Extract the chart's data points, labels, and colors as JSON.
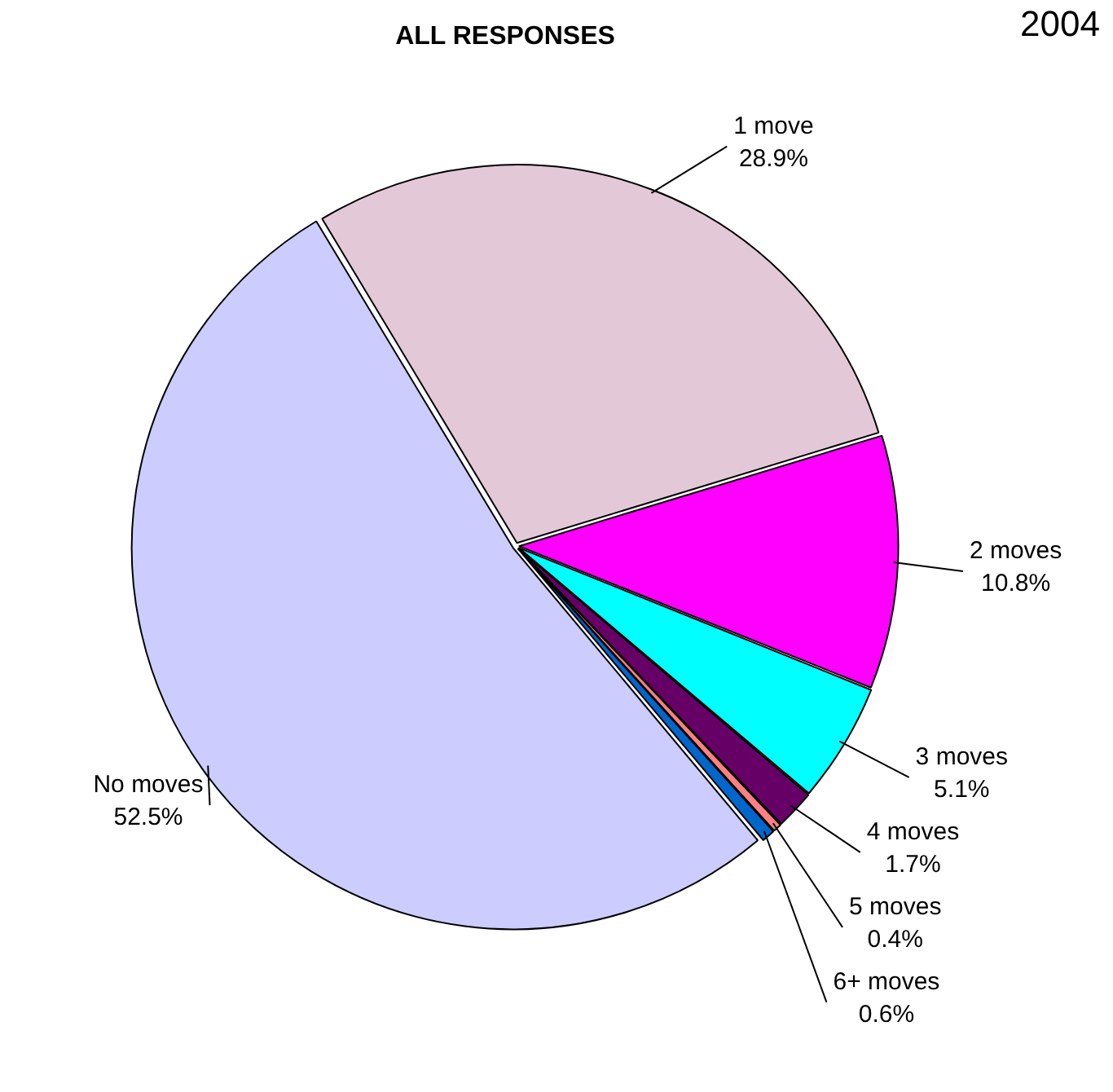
{
  "chart_data": {
    "type": "pie",
    "title": "ALL RESPONSES",
    "annotations": [
      "2004"
    ],
    "categories": [
      "1 move",
      "2 moves",
      "3 moves",
      "4 moves",
      "5 moves",
      "6+ moves",
      "No moves"
    ],
    "values": [
      28.9,
      10.8,
      5.1,
      1.7,
      0.4,
      0.6,
      52.5
    ],
    "colors": [
      "#e3c9d8",
      "#ff00ff",
      "#00ffff",
      "#660066",
      "#ff8080",
      "#0066cc",
      "#ccccff"
    ],
    "value_labels": [
      "28.9%",
      "10.8%",
      "5.1%",
      "1.7%",
      "0.4%",
      "0.6%",
      "52.5%"
    ],
    "legend": false
  }
}
